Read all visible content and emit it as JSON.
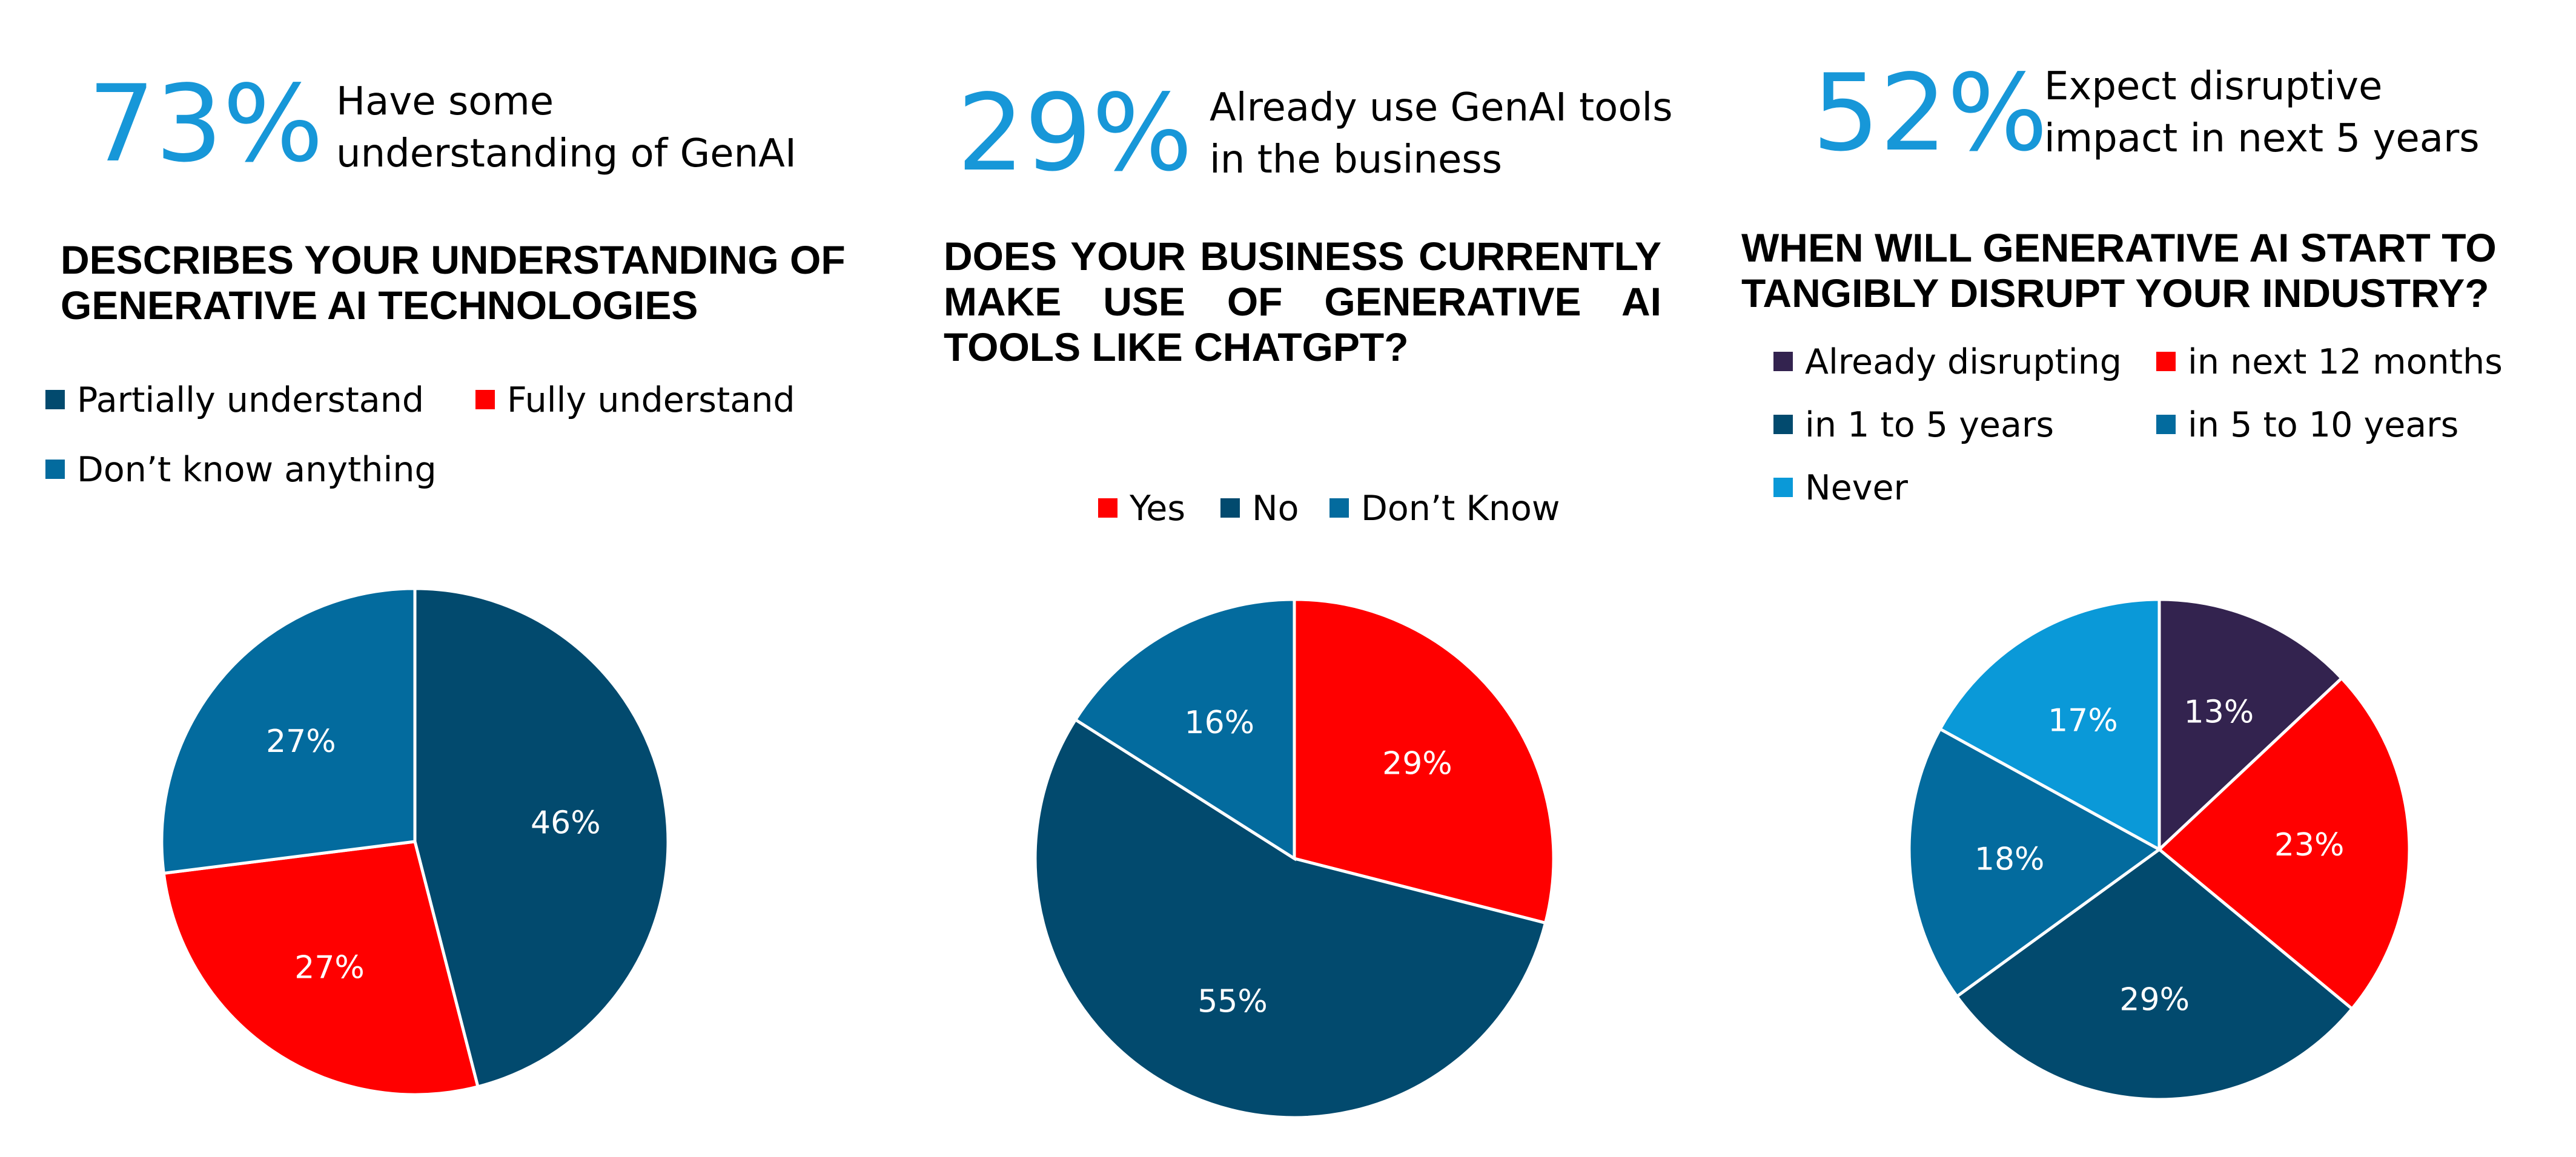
{
  "stats": [
    {
      "value": "73%",
      "text_lines": [
        "Have some",
        "understanding of GenAI"
      ]
    },
    {
      "value": "29%",
      "text_lines": [
        "Already use GenAI tools",
        "in the business"
      ]
    },
    {
      "value": "52%",
      "text_lines": [
        "Expect disruptive",
        "impact in next 5 years"
      ]
    }
  ],
  "chart_data": [
    {
      "type": "pie",
      "title_lines": [
        "DESCRIBES YOUR UNDERSTANDING OF",
        "GENERATIVE AI TECHNOLOGIES"
      ],
      "categories": [
        "Partially understand",
        "Fully understand",
        "Don’t know anything"
      ],
      "values": [
        46,
        27,
        27
      ],
      "labels": [
        "46%",
        "27%",
        "27%"
      ],
      "colors": [
        "#024a6e",
        "#ff0000",
        "#036b9e"
      ],
      "legend_placement": "top"
    },
    {
      "type": "pie",
      "title_lines": [
        "DOES YOUR BUSINESS CURRENTLY",
        "MAKE USE OF GENERATIVE AI",
        "TOOLS LIKE CHATGPT?"
      ],
      "categories": [
        "Yes",
        "No",
        "Don’t Know"
      ],
      "values": [
        29,
        55,
        16
      ],
      "labels": [
        "29%",
        "55%",
        "16%"
      ],
      "colors": [
        "#ff0000",
        "#024a6e",
        "#036b9e"
      ],
      "legend_placement": "top"
    },
    {
      "type": "pie",
      "title_lines": [
        "WHEN WILL GENERATIVE AI START TO",
        "TANGIBLY DISRUPT YOUR INDUSTRY?"
      ],
      "categories": [
        "Already disrupting",
        "in next 12 months",
        "in 1 to 5 years",
        "in 5 to 10 years",
        "Never"
      ],
      "values": [
        13,
        23,
        29,
        18,
        17
      ],
      "labels": [
        "13%",
        "23%",
        "29%",
        "18%",
        "17%"
      ],
      "colors": [
        "#33234f",
        "#ff0000",
        "#024a6e",
        "#036b9e",
        "#0a99d8"
      ],
      "legend_placement": "top"
    }
  ]
}
